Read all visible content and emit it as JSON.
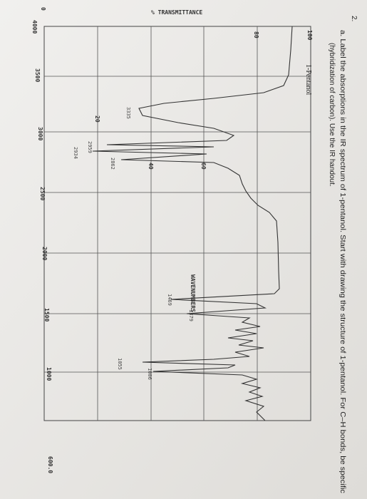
{
  "question": {
    "number": "2.",
    "line1": "a.  Label the absorptions in the IR spectrum of 1-pentanol. Start with drawing the structure of 1-pentanol. For C–H bonds, be specific",
    "line2": "(hybridization of carbon). Use the IR handout."
  },
  "spectrum": {
    "compound": "1-Pentanol",
    "y_axis_title": "% TRANSMITTANCE",
    "x_axis_title": "WAVENUMBERS",
    "transmittance_ticks": [
      "0",
      "20",
      "40",
      "60",
      "80",
      "100"
    ],
    "wavenumber_ticks": [
      "4000",
      "3500",
      "3000",
      "2500",
      "2000",
      "1500",
      "1000",
      "600.0"
    ],
    "peak_labels": [
      "3335",
      "2959",
      "2934",
      "2862",
      "1469",
      "1379",
      "1055",
      "1006"
    ]
  }
}
